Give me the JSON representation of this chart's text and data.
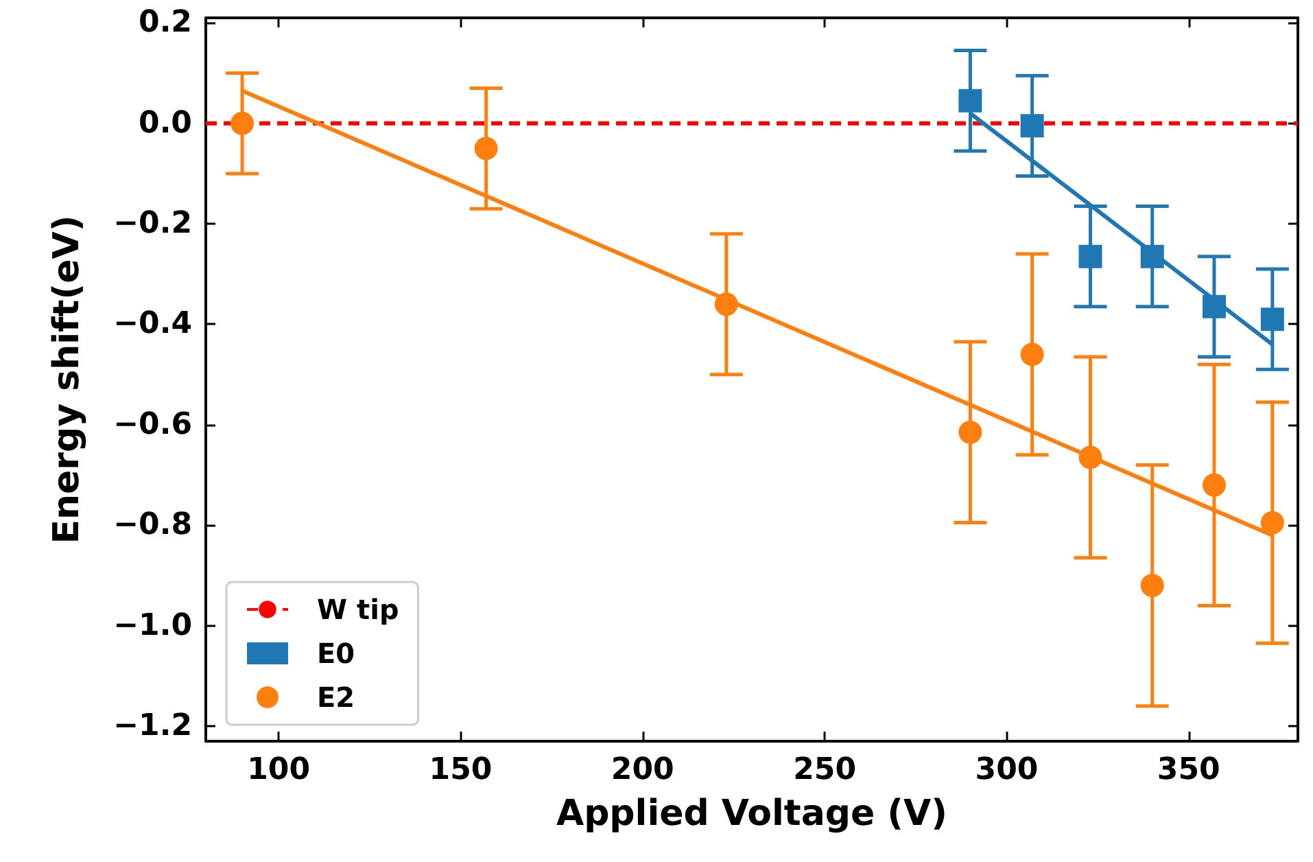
{
  "chart_data": {
    "type": "scatter",
    "xlabel": "Applied Voltage (V)",
    "ylabel": "Energy shift(eV)",
    "xlim": [
      80,
      380
    ],
    "xticks": [
      100,
      150,
      200,
      250,
      300,
      350
    ],
    "ylim": [
      -1.23,
      0.21
    ],
    "yticks": [
      0.2,
      {
        "value": 0,
        "label": "0.0"
      },
      -0.2,
      -0.4,
      -0.6,
      -0.8,
      {
        "value": -1,
        "label": "−1.0"
      },
      -1.2
    ],
    "grid": false,
    "legend": "bottom left",
    "ref_lines": [
      {
        "axis": "y",
        "value": 0,
        "label": "W tip",
        "color": "#ff0000",
        "line_style": "dashed"
      }
    ],
    "series": [
      {
        "name": "E0",
        "marker": "square",
        "color": "#1f77b4",
        "x": [
          290,
          307,
          323,
          340,
          357,
          373
        ],
        "values": [
          0.045,
          -0.005,
          -0.265,
          -0.265,
          -0.365,
          -0.39
        ],
        "errors": [
          0.1,
          0.1,
          0.1,
          0.1,
          0.1,
          0.1
        ]
      },
      {
        "name": "E2",
        "marker": "circle",
        "color": "#ff7f0e",
        "x": [
          90,
          157,
          223,
          290,
          307,
          323,
          340,
          357,
          373
        ],
        "values": [
          0.0,
          -0.05,
          -0.36,
          -0.615,
          -0.46,
          -0.665,
          -0.92,
          -0.72,
          -0.795
        ],
        "errors": [
          0.1,
          0.12,
          0.14,
          0.18,
          0.2,
          0.2,
          0.24,
          0.24,
          0.24
        ]
      },
      {
        "type": "line",
        "marker": "none",
        "color": "#1f77b4",
        "x": [
          290,
          373
        ],
        "values": [
          0.02,
          -0.44
        ]
      },
      {
        "type": "line",
        "marker": "none",
        "color": "#ff7f0e",
        "x": [
          90,
          373
        ],
        "values": [
          0.065,
          -0.82
        ]
      }
    ]
  }
}
